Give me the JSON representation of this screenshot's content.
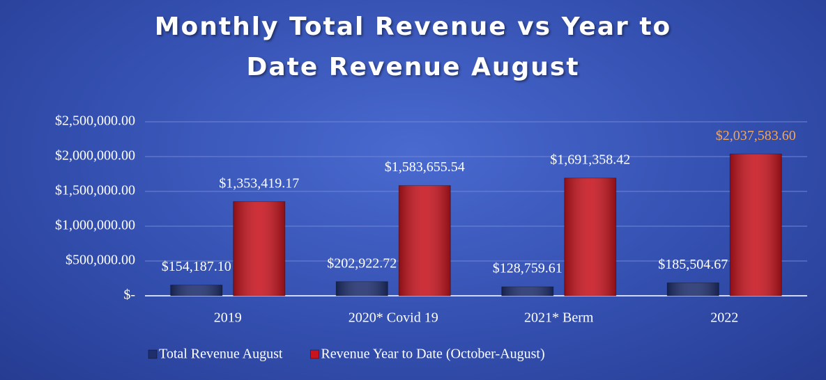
{
  "chart_data": {
    "type": "bar",
    "title": "Monthly Total Revenue vs Year to Date Revenue August",
    "categories": [
      "2019",
      "2020* Covid 19",
      "2021* Berm",
      "2022"
    ],
    "series": [
      {
        "name": "Total Revenue August",
        "color": "#1f2f6e",
        "values": [
          154187.1,
          202922.72,
          128759.61,
          185504.67
        ],
        "value_labels": [
          "$154,187.10",
          "$202,922.72",
          "$128,759.61",
          "$185,504.67"
        ],
        "value_label_colors": [
          "#ffffff",
          "#ffffff",
          "#ffffff",
          "#ffffff"
        ]
      },
      {
        "name": "Revenue Year to Date (October-August)",
        "color": "#c8141e",
        "values": [
          1353419.17,
          1583655.54,
          1691358.42,
          2037583.6
        ],
        "value_labels": [
          "$1,353,419.17",
          "$1,583,655.54",
          "$1,691,358.42",
          "$2,037,583.60"
        ],
        "value_label_colors": [
          "#ffffff",
          "#ffffff",
          "#ffffff",
          "#f2a65a"
        ]
      }
    ],
    "ylim": [
      0,
      2500000
    ],
    "yticks": [
      {
        "value": 0,
        "label": "$-"
      },
      {
        "value": 500000,
        "label": "$500,000.00"
      },
      {
        "value": 1000000,
        "label": "$1,000,000.00"
      },
      {
        "value": 1500000,
        "label": "$1,500,000.00"
      },
      {
        "value": 2000000,
        "label": "$2,000,000.00"
      },
      {
        "value": 2500000,
        "label": "$2,500,000.00"
      }
    ],
    "grid": true,
    "legend": "bottom"
  }
}
